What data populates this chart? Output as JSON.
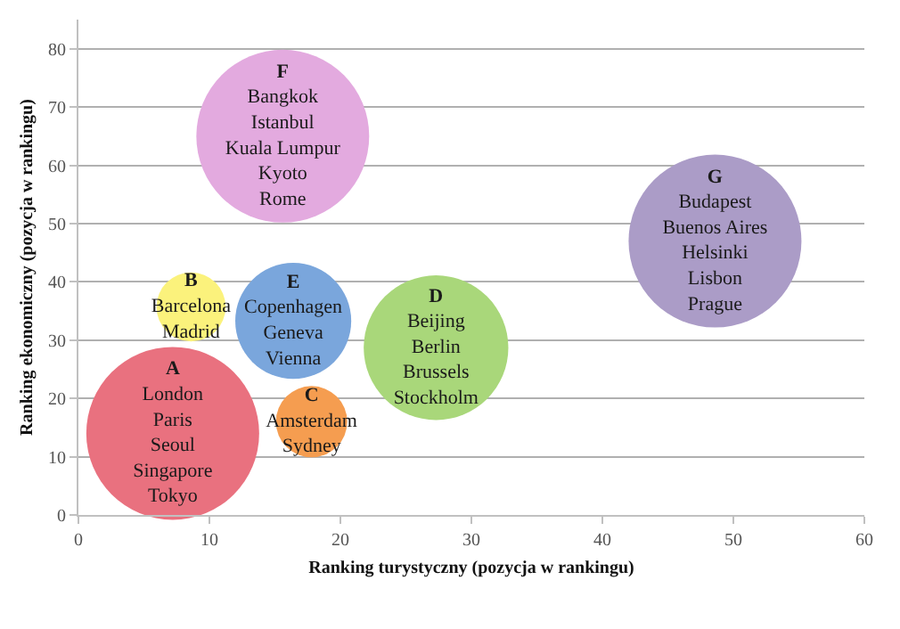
{
  "chart_data": {
    "type": "bubble",
    "xlabel": "Ranking turystyczny (pozycja w rankingu)",
    "ylabel": "Ranking ekonomiczny (pozycja w rankingu)",
    "xlim": [
      0,
      60
    ],
    "xticks": [
      0,
      10,
      20,
      30,
      40,
      50,
      60
    ],
    "ylim": [
      0,
      85
    ],
    "yticks": [
      0,
      10,
      20,
      30,
      40,
      50,
      60,
      70,
      80
    ],
    "grid": "y",
    "legend": false,
    "series": [
      {
        "name": "A",
        "color": "#e9717f",
        "x": [
          7.2
        ],
        "values": [
          14
        ],
        "sizes": [
          1
        ],
        "value_labels": [
          "London\nParis\nSeoul\nSingapore\nTokyo"
        ]
      },
      {
        "name": "B",
        "color": "#fbf27c",
        "x": [
          8.6
        ],
        "values": [
          35.7
        ],
        "sizes": [
          0.16
        ],
        "value_labels": [
          "Barcelona\nMadrid"
        ]
      },
      {
        "name": "C",
        "color": "#f59d50",
        "x": [
          17.8
        ],
        "values": [
          16
        ],
        "sizes": [
          0.17
        ],
        "value_labels": [
          "Amsterdam\nSydney"
        ]
      },
      {
        "name": "D",
        "color": "#a9d77a",
        "x": [
          27.3
        ],
        "values": [
          28.7
        ],
        "sizes": [
          0.7
        ],
        "value_labels": [
          "Beijing\nBerlin\nBrussels\nStockholm"
        ]
      },
      {
        "name": "E",
        "color": "#7aa6dc",
        "x": [
          16.4
        ],
        "values": [
          33.3
        ],
        "sizes": [
          0.45
        ],
        "value_labels": [
          "Copenhagen\nGeneva\nVienna"
        ]
      },
      {
        "name": "F",
        "color": "#e3aadf",
        "x": [
          15.6
        ],
        "values": [
          65
        ],
        "sizes": [
          1
        ],
        "value_labels": [
          "Bangkok\nIstanbul\nKuala Lumpur\nKyoto\nRome"
        ]
      },
      {
        "name": "G",
        "color": "#ab9cc7",
        "x": [
          48.6
        ],
        "values": [
          47
        ],
        "sizes": [
          1
        ],
        "value_labels": [
          "Budapest\nBuenos Aires\nHelsinki\nLisbon\nPrague"
        ]
      }
    ]
  }
}
